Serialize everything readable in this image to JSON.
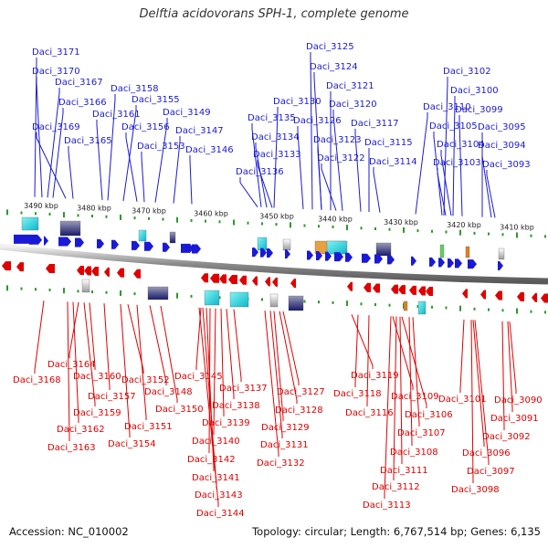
{
  "title": "Delftia acidovorans SPH-1, complete genome",
  "footer": {
    "accession": "Accession: NC_010002",
    "summary": "Topology: circular; Length: 6,767,514 bp; Genes: 6,135"
  },
  "scale_labels": [
    "3490 kbp",
    "3480 kbp",
    "3470 kbp",
    "3460 kbp",
    "3450 kbp",
    "3440 kbp",
    "3430 kbp",
    "3420 kbp",
    "3410 kbp"
  ],
  "top_genes": [
    "Daci_3171",
    "Daci_3170",
    "Daci_3167",
    "Daci_3166",
    "Daci_3169",
    "Daci_3165",
    "Daci_3158",
    "Daci_3155",
    "Daci_3161",
    "Daci_3156",
    "Daci_3153",
    "Daci_3149",
    "Daci_3147",
    "Daci_3146",
    "Daci_3125",
    "Daci_3124",
    "Daci_3121",
    "Daci_3130",
    "Daci_3120",
    "Daci_3135",
    "Daci_3126",
    "Daci_3134",
    "Daci_3133",
    "Daci_3136",
    "Daci_3123",
    "Daci_3122",
    "Daci_3117",
    "Daci_3115",
    "Daci_3114",
    "Daci_3110",
    "Daci_3102",
    "Daci_3100",
    "Daci_3099",
    "Daci_3105",
    "Daci_3104",
    "Daci_3103",
    "Daci_3095",
    "Daci_3094",
    "Daci_3093"
  ],
  "bottom_genes": [
    "Daci_3168",
    "Daci_3164",
    "Daci_3160",
    "Daci_3157",
    "Daci_3159",
    "Daci_3162",
    "Daci_3163",
    "Daci_3152",
    "Daci_3148",
    "Daci_3150",
    "Daci_3151",
    "Daci_3154",
    "Daci_3145",
    "Daci_3137",
    "Daci_3138",
    "Daci_3139",
    "Daci_3140",
    "Daci_3142",
    "Daci_3141",
    "Daci_3143",
    "Daci_3144",
    "Daci_3127",
    "Daci_3128",
    "Daci_3129",
    "Daci_3131",
    "Daci_3132",
    "Daci_3119",
    "Daci_3118",
    "Daci_3116",
    "Daci_3109",
    "Daci_3106",
    "Daci_3107",
    "Daci_3108",
    "Daci_3111",
    "Daci_3112",
    "Daci_3113",
    "Daci_3101",
    "Daci_3090",
    "Daci_3091",
    "Daci_3092",
    "Daci_3096",
    "Daci_3097",
    "Daci_3098"
  ],
  "colors": {
    "top_strand": "#1a1ad6",
    "bottom_strand": "#e00000",
    "tick": "#2a9a2a",
    "backbone": "#9a9a9a"
  }
}
